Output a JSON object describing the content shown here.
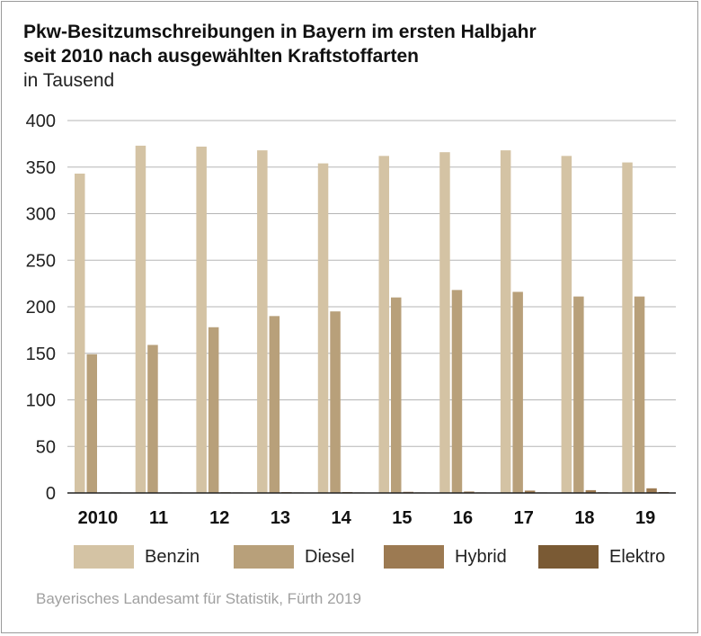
{
  "chart_data": {
    "type": "bar",
    "title": "Pkw-Besitzumschreibungen in Bayern im ersten Halbjahr seit 2010 nach ausgewählten Kraftstoffarten",
    "subtitle": "in Tausend",
    "categories": [
      "2010",
      "11",
      "12",
      "13",
      "14",
      "15",
      "16",
      "17",
      "18",
      "19"
    ],
    "series": [
      {
        "name": "Benzin",
        "color": "#d4c3a4",
        "values": [
          343,
          373,
          372,
          368,
          354,
          362,
          366,
          368,
          362,
          355
        ]
      },
      {
        "name": "Diesel",
        "color": "#b8a07a",
        "values": [
          149,
          159,
          178,
          190,
          195,
          210,
          218,
          216,
          211,
          211
        ]
      },
      {
        "name": "Hybrid",
        "color": "#9c7a52",
        "values": [
          0.5,
          0.6,
          0.8,
          0.9,
          1,
          1.2,
          1.5,
          2.5,
          3,
          5
        ]
      },
      {
        "name": "Elektro",
        "color": "#7a5a34",
        "values": [
          0.1,
          0.1,
          0.1,
          0.1,
          0.2,
          0.3,
          0.4,
          0.5,
          0.7,
          1
        ]
      }
    ],
    "yticks": [
      0,
      50,
      100,
      150,
      200,
      250,
      300,
      350,
      400
    ],
    "ylim": [
      0,
      400
    ],
    "grid": true,
    "xlabel": "",
    "ylabel": "",
    "legend_position": "bottom"
  },
  "source": "Bayerisches Landesamt für Statistik, Fürth 2019"
}
